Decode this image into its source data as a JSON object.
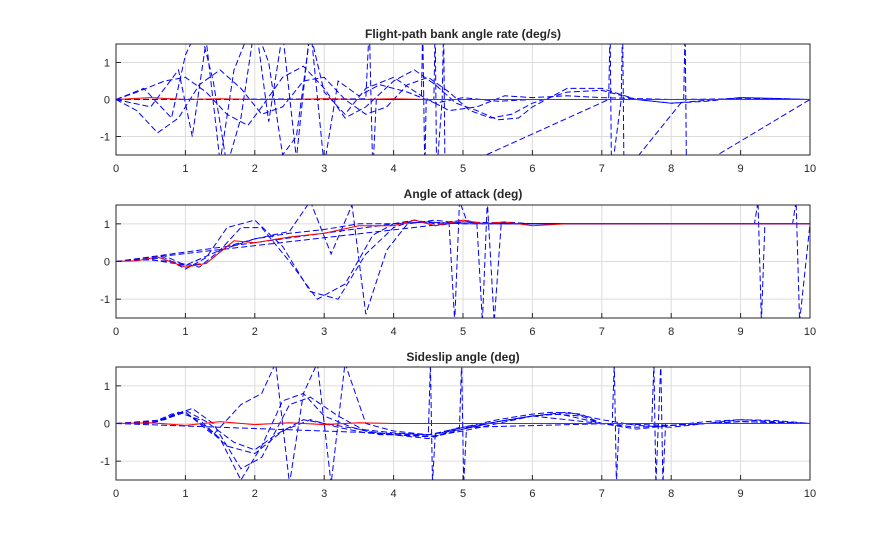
{
  "chart_data": [
    {
      "type": "line",
      "title": "Flight-path bank angle rate (deg/s)",
      "xlim": [
        0,
        10
      ],
      "ylim": [
        -1.5,
        1.5
      ],
      "xticks": [
        "0",
        "1",
        "2",
        "3",
        "4",
        "5",
        "6",
        "7",
        "8",
        "9",
        "10"
      ],
      "yticks": [
        "1",
        "0",
        "-1"
      ],
      "grid": true,
      "colors": {
        "reference": "#ff0000",
        "samples": "#0000ff"
      },
      "reference": {
        "style": "solid",
        "x": [
          0,
          0.5,
          1,
          1.5,
          2,
          2.5,
          3,
          3.5,
          4,
          4.5,
          5,
          6,
          7,
          8,
          9,
          10
        ],
        "y": [
          0,
          0.05,
          0,
          0.02,
          0,
          0,
          0.02,
          0,
          0.02,
          0,
          0,
          0,
          0,
          0,
          0,
          0
        ]
      },
      "samples": [
        {
          "style": "dashed",
          "x": [
            0,
            0.3,
            0.7,
            1.0,
            1.3,
            1.6,
            1.9,
            2.1,
            2.4,
            2.7,
            3.0,
            3.3,
            3.6,
            4.0,
            4.3,
            4.6,
            4.9,
            5.2,
            5.5,
            5.8,
            6.0,
            6.5,
            7.0,
            7.5,
            8.0,
            8.5,
            9.0,
            9.5,
            10.0
          ],
          "y": [
            0,
            0.2,
            0.5,
            0.6,
            0.2,
            -0.4,
            -0.7,
            -0.2,
            0.6,
            0.9,
            0.3,
            -0.5,
            -0.2,
            0.5,
            0.8,
            0.4,
            -0.1,
            -0.3,
            -0.55,
            -0.5,
            -0.2,
            0.3,
            0.3,
            0.0,
            -0.1,
            -0.05,
            0.05,
            0.03,
            0
          ]
        },
        {
          "style": "dashed",
          "x": [
            0,
            0.3,
            0.6,
            0.9,
            1.2,
            1.5,
            1.8,
            2.1,
            2.4,
            2.7,
            3.0,
            3.3,
            3.6,
            3.9,
            4.2,
            4.5,
            4.8,
            5.1,
            5.4,
            5.7,
            6.0,
            6.5,
            7.0,
            7.5,
            8.0,
            9.0,
            10.0
          ],
          "y": [
            0,
            -0.3,
            -0.9,
            -0.5,
            0.4,
            0.8,
            0.3,
            -0.4,
            -0.2,
            0.5,
            0.6,
            0.0,
            -0.4,
            -0.2,
            0.4,
            0.6,
            0.2,
            -0.3,
            -0.5,
            -0.4,
            -0.1,
            0.2,
            0.25,
            0.0,
            -0.1,
            0.05,
            0
          ]
        },
        {
          "style": "dashed",
          "x": [
            0,
            0.4,
            0.8,
            1.0,
            1.2,
            1.4,
            1.6,
            1.8,
            2.0,
            2.2,
            2.4,
            2.6,
            2.8,
            3.0,
            3.3,
            3.6,
            4.0,
            4.4,
            4.8,
            5.2,
            5.6,
            6.0,
            6.5,
            7.0,
            8.0,
            9.0,
            10.0
          ],
          "y": [
            0,
            0.3,
            -0.5,
            1.2,
            2.0,
            0.5,
            -1.8,
            -0.5,
            2.0,
            1.0,
            -1.5,
            -1.0,
            1.8,
            0.2,
            -0.4,
            0.3,
            0.6,
            0.1,
            -0.3,
            -0.2,
            0.1,
            0.05,
            0.1,
            0.05,
            0,
            0.02,
            0
          ]
        },
        {
          "style": "dashed",
          "x": [
            0,
            0.5,
            0.9,
            1.1,
            1.3,
            1.5,
            1.7,
            2.0,
            2.2,
            2.4,
            2.6,
            2.8,
            3.0,
            3.2,
            3.5,
            3.8,
            4.2,
            4.6,
            5.0,
            5.5,
            6.0,
            7.0,
            8.0,
            10.0
          ],
          "y": [
            0,
            -0.2,
            0.8,
            -1.0,
            1.6,
            -1.7,
            0.8,
            2.2,
            -0.6,
            1.8,
            -1.6,
            2.0,
            -1.8,
            0.5,
            0.1,
            0.4,
            0.2,
            -0.1,
            0.05,
            -0.05,
            0,
            0,
            0,
            0
          ]
        },
        {
          "style": "dashed",
          "x": [
            0,
            3.6,
            3.65,
            3.7,
            3.75,
            4.4,
            4.42,
            4.45,
            4.47,
            4.5
          ],
          "y": [
            0,
            0.02,
            2.0,
            -2.0,
            0.0,
            0.0,
            2.0,
            -2.0,
            0.0,
            0
          ]
        },
        {
          "style": "dashed",
          "x": [
            0,
            4.58,
            4.6,
            4.62,
            4.7,
            4.72,
            4.74,
            7.1,
            7.12,
            7.14,
            7.28,
            7.3,
            7.32,
            8.18,
            8.2,
            8.22,
            10.0
          ],
          "y": [
            0,
            0,
            2.0,
            -2.0,
            0,
            2.0,
            -2.0,
            0,
            2.0,
            -2.0,
            0,
            2.0,
            -2.0,
            0,
            2.0,
            -2.0,
            0
          ]
        }
      ]
    },
    {
      "type": "line",
      "title": "Angle of attack (deg)",
      "xlim": [
        0,
        10
      ],
      "ylim": [
        -1.5,
        1.5
      ],
      "xticks": [
        "0",
        "1",
        "2",
        "3",
        "4",
        "5",
        "6",
        "7",
        "8",
        "9",
        "10"
      ],
      "yticks": [
        "1",
        "0",
        "-1"
      ],
      "grid": true,
      "colors": {
        "reference": "#ff0000",
        "samples": "#0000ff"
      },
      "reference": {
        "style": "solid",
        "x": [
          0,
          0.3,
          0.6,
          1.0,
          1.3,
          1.7,
          2.0,
          2.5,
          3.0,
          3.5,
          4.0,
          4.3,
          4.6,
          5.0,
          5.3,
          5.6,
          6.0,
          6.5,
          7.0,
          8.0,
          9.0,
          10.0
        ],
        "y": [
          0,
          0.02,
          0.12,
          -0.15,
          -0.05,
          0.55,
          0.5,
          0.65,
          0.75,
          0.95,
          0.95,
          1.1,
          0.95,
          1.1,
          1.0,
          1.05,
          0.95,
          1.0,
          1.0,
          1.0,
          1.0,
          1.0
        ]
      },
      "samples": [
        {
          "style": "dashed",
          "x": [
            0,
            0.4,
            0.7,
            1.0,
            1.3,
            1.6,
            2.0,
            2.5,
            3.0,
            3.5,
            4.0,
            4.3,
            4.6,
            5.0,
            5.3,
            5.6,
            6.0,
            7.0,
            8.0,
            9.0,
            10.0
          ],
          "y": [
            0,
            0.05,
            0.15,
            -0.1,
            -0.05,
            0.4,
            0.6,
            0.75,
            0.85,
            1.0,
            1.0,
            1.1,
            1.0,
            1.1,
            1.0,
            1.05,
            1.0,
            1.0,
            1.0,
            1.0,
            1.0
          ]
        },
        {
          "style": "dashed",
          "x": [
            0,
            0.4,
            0.7,
            1.0,
            1.3,
            1.6,
            2.0,
            2.4,
            2.8,
            3.2,
            3.6,
            4.0,
            4.3,
            4.6,
            5.0,
            5.4,
            6.0,
            7.0,
            8.0,
            9.0,
            10.0
          ],
          "y": [
            0,
            0.05,
            0.1,
            -0.2,
            0.1,
            0.9,
            1.1,
            0.4,
            -0.8,
            -1.0,
            0.2,
            0.9,
            1.1,
            0.95,
            1.05,
            1.0,
            1.0,
            1.0,
            1.0,
            1.0,
            1.0
          ]
        },
        {
          "style": "dashed",
          "x": [
            0,
            0.4,
            0.8,
            1.2,
            1.5,
            1.8,
            2.1,
            2.5,
            2.9,
            3.3,
            3.7,
            4.0,
            4.5,
            5.0,
            5.5,
            6.0,
            7.0,
            8.0,
            10.0
          ],
          "y": [
            0,
            0.05,
            0.0,
            -0.15,
            0.3,
            0.9,
            0.9,
            0.0,
            -1.0,
            -0.6,
            0.7,
            1.0,
            1.05,
            1.0,
            1.0,
            1.0,
            1.0,
            1.0,
            1.0
          ]
        },
        {
          "style": "dashed",
          "x": [
            0,
            0.5,
            1.0,
            1.5,
            2.0,
            2.5,
            2.8,
            3.1,
            3.4,
            3.6,
            3.9,
            4.2,
            4.6,
            5.0,
            5.5,
            6.0,
            7.0,
            8.0,
            10.0
          ],
          "y": [
            0,
            0.05,
            -0.1,
            0.3,
            0.6,
            0.8,
            1.6,
            0.2,
            1.5,
            -1.4,
            0.3,
            1.0,
            1.1,
            1.0,
            1.0,
            1.0,
            1.0,
            1.0,
            1.0
          ]
        },
        {
          "style": "dashed",
          "x": [
            0,
            4.0,
            4.5,
            4.8,
            4.88,
            4.95,
            5.05,
            5.2,
            5.28,
            5.35,
            5.45,
            5.55,
            6.0,
            7.0,
            8.0,
            9.0,
            10.0
          ],
          "y": [
            0,
            1.0,
            1.05,
            1.0,
            -1.6,
            1.6,
            1.1,
            1.0,
            -1.6,
            1.6,
            -1.6,
            1.0,
            1.0,
            1.0,
            1.0,
            1.0,
            1.0
          ]
        },
        {
          "style": "dashed",
          "x": [
            0,
            5.0,
            6.0,
            7.0,
            8.0,
            9.2,
            9.25,
            9.3,
            9.35,
            9.75,
            9.8,
            9.85,
            10.0
          ],
          "y": [
            0,
            1.05,
            1.0,
            1.0,
            1.0,
            1.0,
            1.6,
            -1.6,
            1.0,
            1.0,
            1.6,
            -1.6,
            1.0
          ]
        }
      ]
    },
    {
      "type": "line",
      "title": "Sideslip angle (deg)",
      "xlim": [
        0,
        10
      ],
      "ylim": [
        -1.5,
        1.5
      ],
      "xticks": [
        "0",
        "1",
        "2",
        "3",
        "4",
        "5",
        "6",
        "7",
        "8",
        "9",
        "10"
      ],
      "yticks": [
        "1",
        "0",
        "-1"
      ],
      "grid": true,
      "colors": {
        "reference": "#ff0000",
        "samples": "#0000ff"
      },
      "reference": {
        "style": "solid",
        "x": [
          0,
          0.5,
          1.0,
          1.5,
          2.0,
          2.5,
          3.0,
          3.5,
          4.0,
          5.0,
          6.0,
          7.0,
          8.0,
          9.0,
          10.0
        ],
        "y": [
          0,
          0.02,
          -0.05,
          0.05,
          -0.03,
          0.02,
          -0.03,
          0.02,
          0.0,
          0.0,
          0.0,
          0.0,
          0.0,
          0.0,
          0.0
        ]
      },
      "samples": [
        {
          "style": "dashed",
          "x": [
            0,
            0.5,
            0.8,
            1.0,
            1.3,
            1.6,
            2.0,
            2.4,
            2.8,
            3.2,
            3.6,
            4.0,
            4.5,
            5.0,
            5.5,
            6.0,
            6.3,
            6.7,
            7.0,
            7.5,
            8.0,
            8.5,
            9.0,
            9.5,
            10.0
          ],
          "y": [
            0,
            0.0,
            0.25,
            0.3,
            -0.1,
            -0.6,
            -0.8,
            -0.2,
            0.1,
            -0.1,
            -0.25,
            -0.3,
            -0.35,
            -0.2,
            0.0,
            0.2,
            0.25,
            0.2,
            0.0,
            -0.1,
            -0.05,
            0.05,
            0.1,
            0.05,
            0
          ]
        },
        {
          "style": "dashed",
          "x": [
            0,
            0.5,
            0.8,
            1.1,
            1.4,
            1.8,
            2.1,
            2.5,
            2.8,
            3.2,
            3.6,
            4.0,
            4.5,
            5.0,
            5.5,
            6.0,
            6.3,
            6.7,
            7.0,
            7.5,
            8.0,
            9.0,
            10.0
          ],
          "y": [
            0,
            0.0,
            0.2,
            0.4,
            0.0,
            -1.2,
            -0.9,
            0.5,
            0.7,
            0.2,
            -0.2,
            -0.3,
            -0.4,
            -0.1,
            0.1,
            0.25,
            0.3,
            0.25,
            0.0,
            -0.15,
            -0.05,
            0.05,
            0
          ]
        },
        {
          "style": "dashed",
          "x": [
            0,
            0.6,
            0.9,
            1.2,
            1.5,
            1.8,
            2.1,
            2.4,
            2.7,
            3.0,
            3.4,
            3.8,
            4.2,
            4.6,
            5.0,
            5.5,
            6.0,
            6.4,
            7.0,
            8.0,
            9.0,
            10.0
          ],
          "y": [
            0,
            0.05,
            0.3,
            0.1,
            -0.4,
            -1.5,
            -0.6,
            0.6,
            0.8,
            0.2,
            -0.1,
            -0.3,
            -0.3,
            -0.35,
            -0.15,
            0.05,
            0.2,
            0.25,
            0.0,
            -0.05,
            0.05,
            0
          ]
        },
        {
          "style": "dashed",
          "x": [
            0,
            0.6,
            1.0,
            1.4,
            1.8,
            2.1,
            2.3,
            2.5,
            2.7,
            2.9,
            3.1,
            3.3,
            3.6,
            4.0,
            4.5,
            5.0,
            6.0,
            7.0,
            8.0,
            10.0
          ],
          "y": [
            0,
            0.05,
            0.3,
            -0.3,
            0.5,
            0.8,
            1.6,
            -1.6,
            0.8,
            1.6,
            -1.6,
            1.6,
            0.0,
            -0.2,
            -0.3,
            -0.1,
            0.2,
            0.0,
            0.0,
            0
          ]
        },
        {
          "style": "dashed",
          "x": [
            0,
            4.5,
            4.53,
            4.56,
            4.6,
            4.95,
            4.98,
            5.01,
            5.05,
            7.15,
            7.18,
            7.21,
            7.25,
            7.72,
            7.75,
            7.78,
            7.85,
            7.88,
            7.92,
            10.0
          ],
          "y": [
            0,
            -0.3,
            1.6,
            -1.6,
            -0.3,
            -0.1,
            1.6,
            -1.6,
            -0.1,
            0.0,
            1.6,
            -1.6,
            0.0,
            0.0,
            1.6,
            -1.6,
            1.6,
            -1.6,
            0.0,
            0
          ]
        },
        {
          "style": "dashed",
          "x": [
            0,
            0.7,
            1.0,
            1.3,
            1.7,
            2.0,
            2.3,
            2.7,
            3.0,
            3.5,
            4.0,
            4.5,
            5.0,
            5.5,
            6.0,
            6.5,
            7.0,
            7.5,
            8.0,
            8.5,
            9.0,
            9.5,
            10.0
          ],
          "y": [
            0,
            0.1,
            0.35,
            0.05,
            -0.5,
            -0.7,
            -0.3,
            0.1,
            0.0,
            -0.15,
            -0.25,
            -0.3,
            -0.15,
            0.05,
            0.2,
            0.3,
            0.1,
            -0.05,
            -0.1,
            0.0,
            0.1,
            0.08,
            0.0
          ]
        }
      ]
    }
  ]
}
